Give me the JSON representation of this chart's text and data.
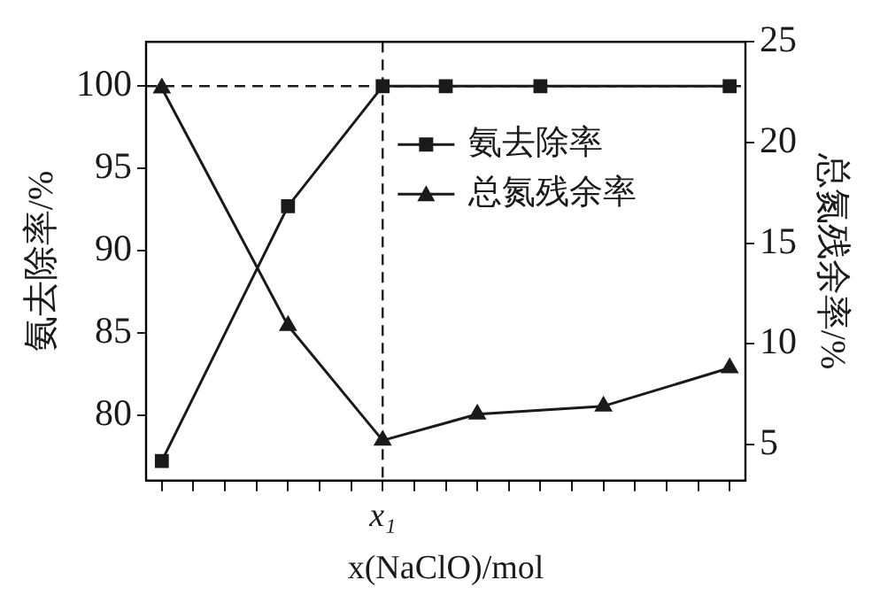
{
  "chart_data": {
    "type": "line",
    "xlabel": "x(NaClO)/mol",
    "ylabel": "氨去除率/%",
    "y2label": "总氮残余率/%",
    "categories": [
      null,
      null,
      null,
      null,
      null,
      null,
      null,
      "x₁",
      null,
      null,
      null,
      null,
      null,
      null,
      null,
      null,
      null,
      null,
      null
    ],
    "ylim": [
      76,
      102.7
    ],
    "yticks": [
      80,
      85,
      90,
      95,
      100
    ],
    "y2lim": [
      3.2,
      25
    ],
    "y2ticks": [
      5,
      10,
      15,
      20,
      25
    ],
    "series": [
      {
        "name": "氨去除率",
        "color": "#1a1a1a",
        "marker": "square",
        "values": [
          77.2,
          null,
          null,
          null,
          92.7,
          null,
          null,
          100,
          null,
          100,
          null,
          null,
          100,
          null,
          null,
          null,
          null,
          null,
          100
        ]
      },
      {
        "name": "总氮残余率",
        "color": "#1a1a1a",
        "marker": "triangle",
        "axis": "y2",
        "values": [
          22.7,
          null,
          null,
          null,
          10.9,
          null,
          null,
          5.2,
          null,
          null,
          6.5,
          null,
          null,
          null,
          6.9,
          null,
          null,
          null,
          8.8
        ]
      }
    ],
    "ref_lines": [
      {
        "axis": "y",
        "value": 100,
        "line_style": "dashed",
        "color": "#1a1a1a"
      },
      {
        "axis": "x",
        "value": "x₁",
        "line_style": "dashed",
        "color": "#1a1a1a"
      }
    ],
    "legend": "top right",
    "grid": false
  }
}
